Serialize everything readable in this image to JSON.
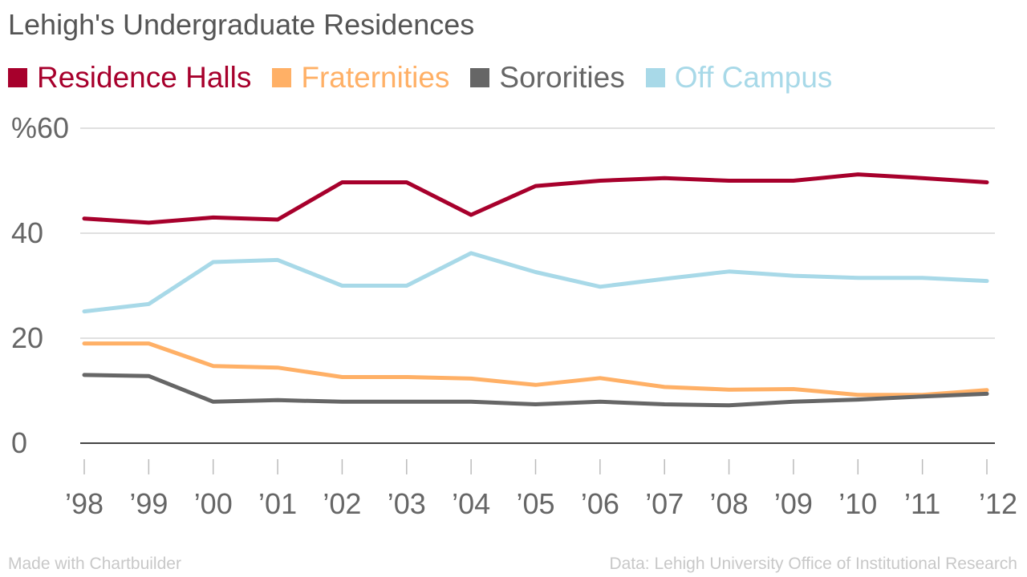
{
  "chart_data": {
    "type": "line",
    "title": "Lehigh's Undergraduate Residences",
    "categories": [
      "’98",
      "’99",
      "’00",
      "’01",
      "’02",
      "’03",
      "’04",
      "’05",
      "’06",
      "’07",
      "’08",
      "’09",
      "’10",
      "’11",
      "’12"
    ],
    "series": [
      {
        "name": "Residence Halls",
        "color": "#a7002c",
        "values": [
          42.8,
          42.0,
          43.0,
          42.6,
          49.7,
          49.7,
          43.5,
          49.0,
          50.0,
          50.5,
          50.0,
          50.0,
          51.2,
          50.5,
          49.7
        ]
      },
      {
        "name": "Fraternities",
        "color": "#ffb066",
        "values": [
          19.0,
          19.0,
          14.7,
          14.4,
          12.6,
          12.6,
          12.3,
          11.1,
          12.4,
          10.7,
          10.2,
          10.3,
          9.2,
          9.2,
          10.1
        ]
      },
      {
        "name": "Sororities",
        "color": "#666666",
        "values": [
          13.0,
          12.8,
          7.9,
          8.2,
          7.9,
          7.9,
          7.9,
          7.4,
          7.9,
          7.4,
          7.2,
          7.9,
          8.3,
          8.9,
          9.4
        ]
      },
      {
        "name": "Off Campus",
        "color": "#a8d9e8",
        "values": [
          25.1,
          26.5,
          34.5,
          34.9,
          30.0,
          30.0,
          36.2,
          32.6,
          29.8,
          31.3,
          32.7,
          31.9,
          31.5,
          31.5,
          30.9
        ]
      }
    ],
    "ylim": [
      0,
      60
    ],
    "yticks": [
      0,
      20,
      40,
      60
    ],
    "ytick_labels": [
      "0",
      "20",
      "40",
      "%60"
    ],
    "grid": true,
    "legend_position": "top-left"
  },
  "footer": {
    "credit": "Made with Chartbuilder",
    "source": "Data: Lehigh University Office of Institutional Research"
  }
}
